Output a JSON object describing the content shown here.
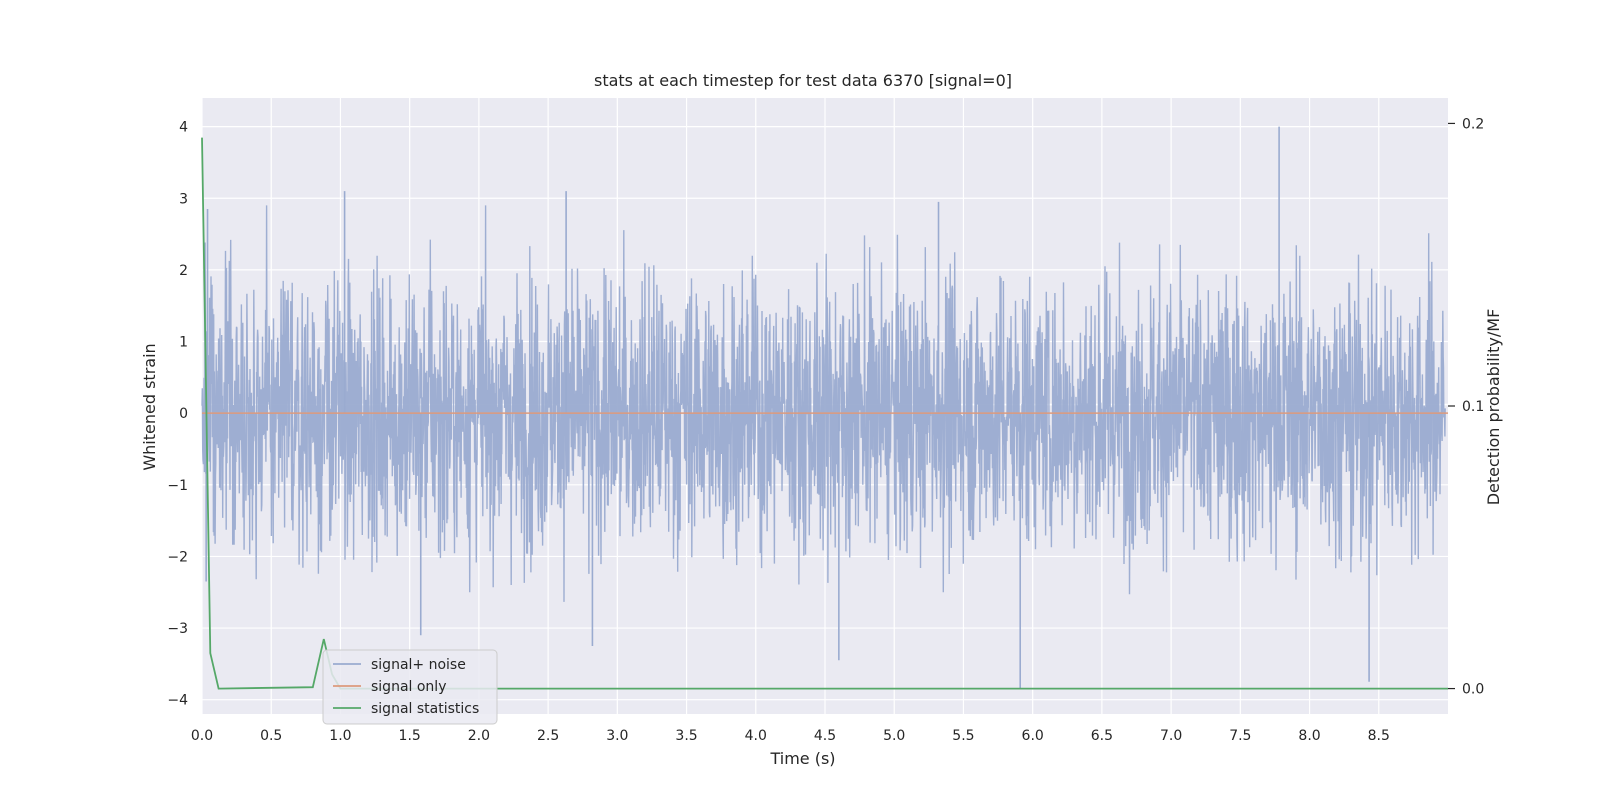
{
  "chart_data": {
    "type": "line",
    "title": "stats at each timestep for test data 6370 [signal=0]",
    "xlabel": "Time (s)",
    "ylabel": "Whitened strain",
    "y2label": "Detection probability/MF",
    "xlim": [
      0.0,
      9.0
    ],
    "ylim": [
      -4.2,
      4.4
    ],
    "y2lim": [
      -0.009,
      0.209
    ],
    "x_ticks": [
      0.0,
      0.5,
      1.0,
      1.5,
      2.0,
      2.5,
      3.0,
      3.5,
      4.0,
      4.5,
      5.0,
      5.5,
      6.0,
      6.5,
      7.0,
      7.5,
      8.0,
      8.5
    ],
    "x_tick_labels": [
      "0.0",
      "0.5",
      "1.0",
      "1.5",
      "2.0",
      "2.5",
      "3.0",
      "3.5",
      "4.0",
      "4.5",
      "5.0",
      "5.5",
      "6.0",
      "6.5",
      "7.0",
      "7.5",
      "8.0",
      "8.5"
    ],
    "y_ticks": [
      4,
      3,
      2,
      1,
      0,
      -1,
      -2,
      -3,
      -4
    ],
    "y_tick_labels": [
      "4",
      "3",
      "2",
      "1",
      "0",
      "−1",
      "−2",
      "−3",
      "−4"
    ],
    "y2_ticks": [
      0.2,
      0.1,
      0.0
    ],
    "y2_tick_labels": [
      "0.2",
      "0.1",
      "0.0"
    ],
    "grid": true,
    "legend_position": "lower-left",
    "colors": {
      "noise": "#9aabd0",
      "signal": "#dd9a7c",
      "stats": "#55a868",
      "plot_bg": "#eaeaf2",
      "grid": "#ffffff"
    },
    "series": [
      {
        "name": "signal+ noise",
        "axis": "left",
        "description": "dense whitened strain noise, roughly ±2 with peaks near ±3",
        "notable_peaks": [
          {
            "x": 0.04,
            "y": 2.85
          },
          {
            "x": 0.03,
            "y": -2.35
          },
          {
            "x": 1.03,
            "y": 3.1
          },
          {
            "x": 1.58,
            "y": -3.1
          },
          {
            "x": 2.63,
            "y": 3.1
          },
          {
            "x": 2.82,
            "y": -3.25
          },
          {
            "x": 4.6,
            "y": -3.45
          },
          {
            "x": 5.32,
            "y": 2.95
          },
          {
            "x": 5.91,
            "y": -3.85
          },
          {
            "x": 7.78,
            "y": 4.0
          },
          {
            "x": 8.43,
            "y": -3.75
          }
        ]
      },
      {
        "name": "signal only",
        "axis": "left",
        "x": [
          0.0,
          9.0
        ],
        "y": [
          0.0,
          0.0
        ]
      },
      {
        "name": "signal statistics",
        "axis": "right",
        "x": [
          0.0,
          0.06,
          0.12,
          0.8,
          0.88,
          0.94,
          1.0,
          9.0
        ],
        "y": [
          0.195,
          0.0125,
          0.0,
          0.0005,
          0.0175,
          0.005,
          0.0,
          0.0
        ]
      }
    ],
    "threshold_line": {
      "axis": "right",
      "y": 0.1005
    }
  }
}
